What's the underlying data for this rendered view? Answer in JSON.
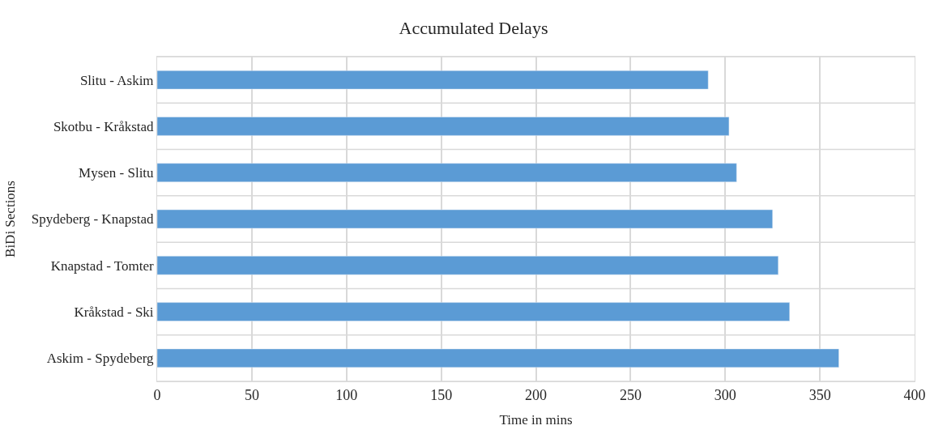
{
  "chart_data": {
    "type": "bar",
    "orientation": "horizontal",
    "title": "Accumulated Delays",
    "xlabel": "Time in mins",
    "ylabel": "BiDi Sections",
    "categories": [
      "Slitu - Askim",
      "Skotbu - Kråkstad",
      "Mysen - Slitu",
      "Spydeberg - Knapstad",
      "Knapstad - Tomter",
      "Kråkstad - Ski",
      "Askim - Spydeberg"
    ],
    "values": [
      291,
      302,
      306,
      325,
      328,
      334,
      360
    ],
    "color": "#5b9bd5",
    "xlim": [
      0,
      400
    ],
    "xticks": [
      0,
      50,
      100,
      150,
      200,
      250,
      300,
      350,
      400
    ],
    "grid": true
  }
}
